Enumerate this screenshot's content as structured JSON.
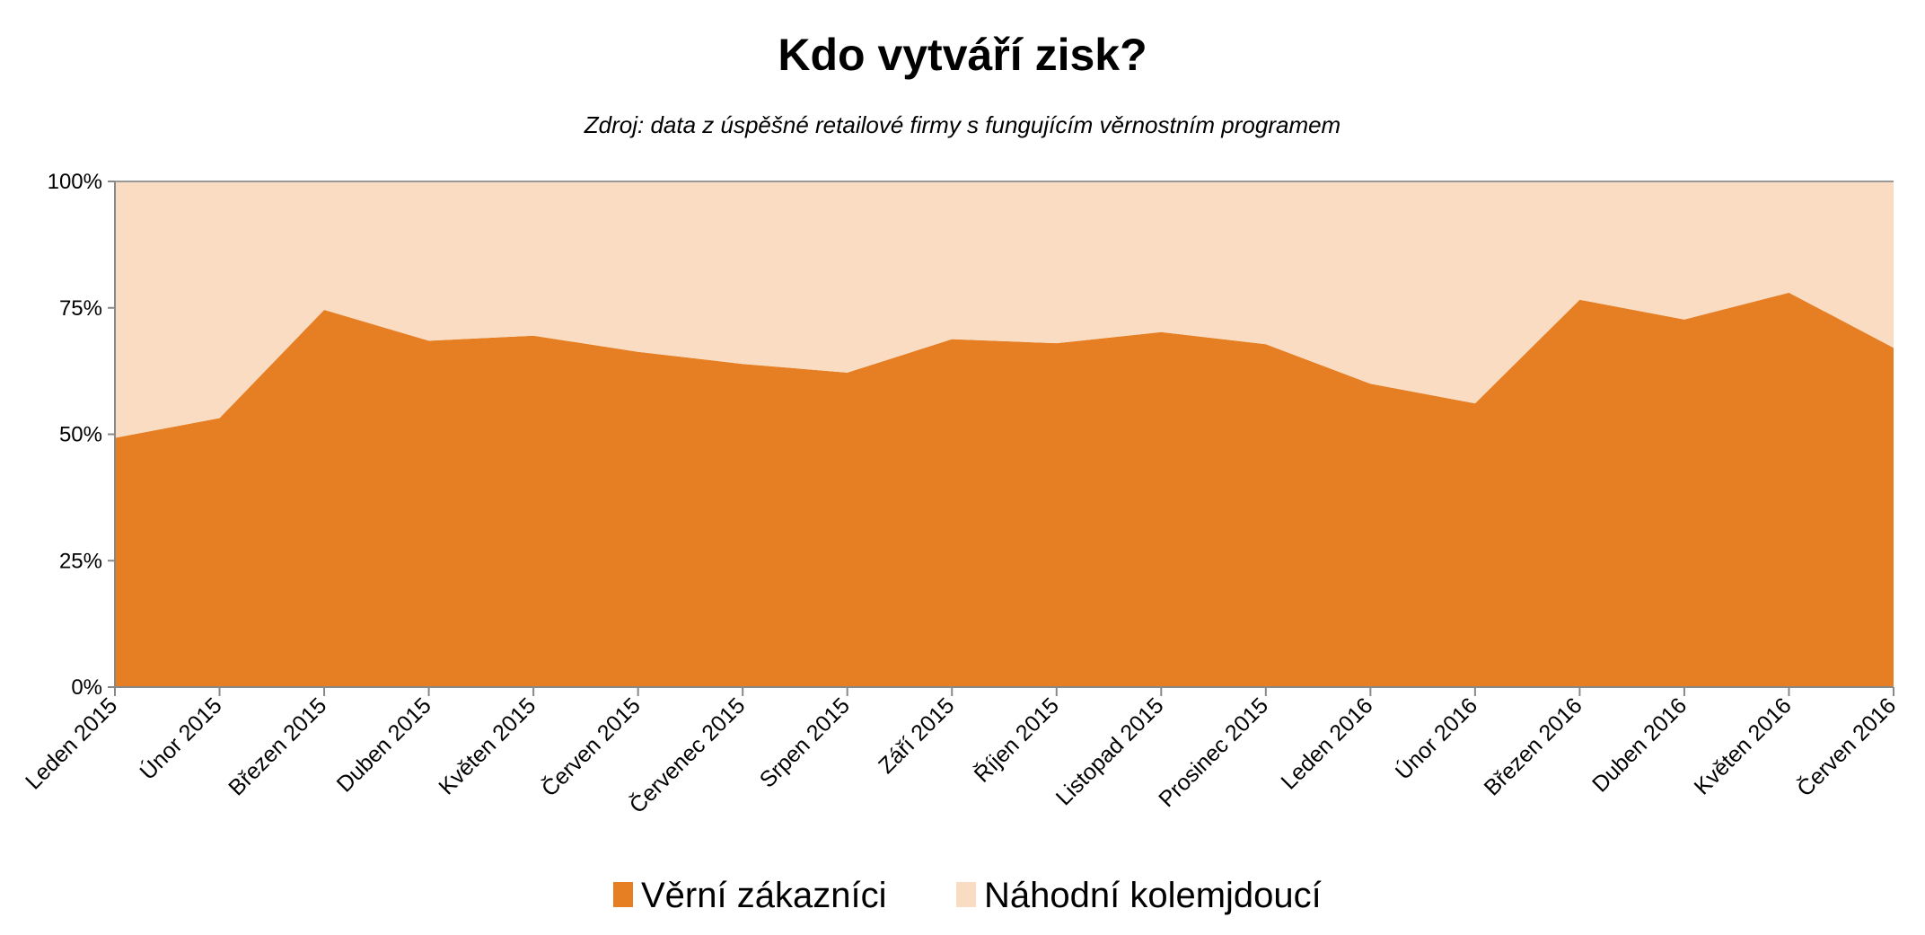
{
  "chart_data": {
    "type": "area",
    "stacked": "percent",
    "title": "Kdo vytváří zisk?",
    "subtitle": "Zdroj: data z úspěšné retailové firmy s fungujícím věrnostním programem",
    "xlabel": "",
    "ylabel": "",
    "ylim": [
      0,
      100
    ],
    "yticks": [
      "0%",
      "25%",
      "50%",
      "75%",
      "100%"
    ],
    "grid": false,
    "legend_position": "bottom",
    "categories": [
      "Leden 2015",
      "Únor 2015",
      "Březen 2015",
      "Duben 2015",
      "Květen 2015",
      "Červen 2015",
      "Červenec 2015",
      "Srpen 2015",
      "Září 2015",
      "Říjen 2015",
      "Listopad 2015",
      "Prosinec 2015",
      "Leden 2016",
      "Únor 2016",
      "Březen 2016",
      "Duben 2016",
      "Květen 2016",
      "Červen 2016"
    ],
    "series": [
      {
        "name": "Věrní zákazníci",
        "color": "#E67F23",
        "values": [
          49.3,
          53.2,
          74.6,
          68.5,
          69.5,
          66.3,
          63.9,
          62.2,
          68.8,
          68.0,
          70.2,
          67.8,
          60.0,
          56.1,
          76.6,
          72.7,
          78.0,
          67.1
        ]
      },
      {
        "name": "Náhodní kolemjdoucí",
        "color": "#FADCC3",
        "values": [
          50.7,
          46.8,
          25.4,
          31.5,
          30.5,
          33.7,
          36.1,
          37.8,
          31.2,
          32.0,
          29.8,
          32.2,
          40.0,
          43.9,
          23.4,
          27.3,
          22.0,
          32.9
        ]
      }
    ]
  }
}
